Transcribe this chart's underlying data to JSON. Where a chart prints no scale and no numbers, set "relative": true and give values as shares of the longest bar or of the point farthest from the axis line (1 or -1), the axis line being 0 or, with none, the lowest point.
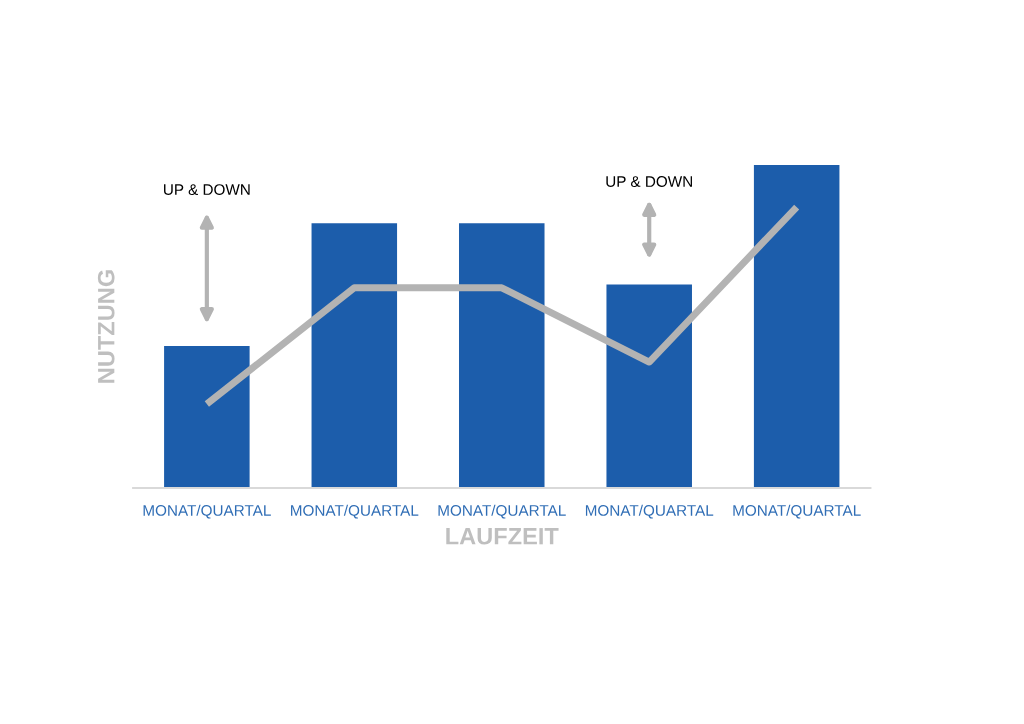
{
  "chart_data": {
    "type": "bar",
    "relative": true,
    "xlabel": "LAUFZEIT",
    "ylabel": "NUTZUNG",
    "categories": [
      "MONAT/QUARTAL",
      "MONAT/QUARTAL",
      "MONAT/QUARTAL",
      "MONAT/QUARTAL",
      "MONAT/QUARTAL"
    ],
    "series": [
      {
        "color": "#1c5dab",
        "values": [
          0.44,
          0.82,
          0.82,
          0.63,
          1
        ]
      },
      {
        "type": "line",
        "color": "#b3b3b3",
        "values": [
          0.26,
          0.62,
          0.62,
          0.39,
          0.87
        ]
      }
    ],
    "annotations": [
      "UP & DOWN",
      "UP & DOWN"
    ],
    "grid": false,
    "legend": false
  }
}
